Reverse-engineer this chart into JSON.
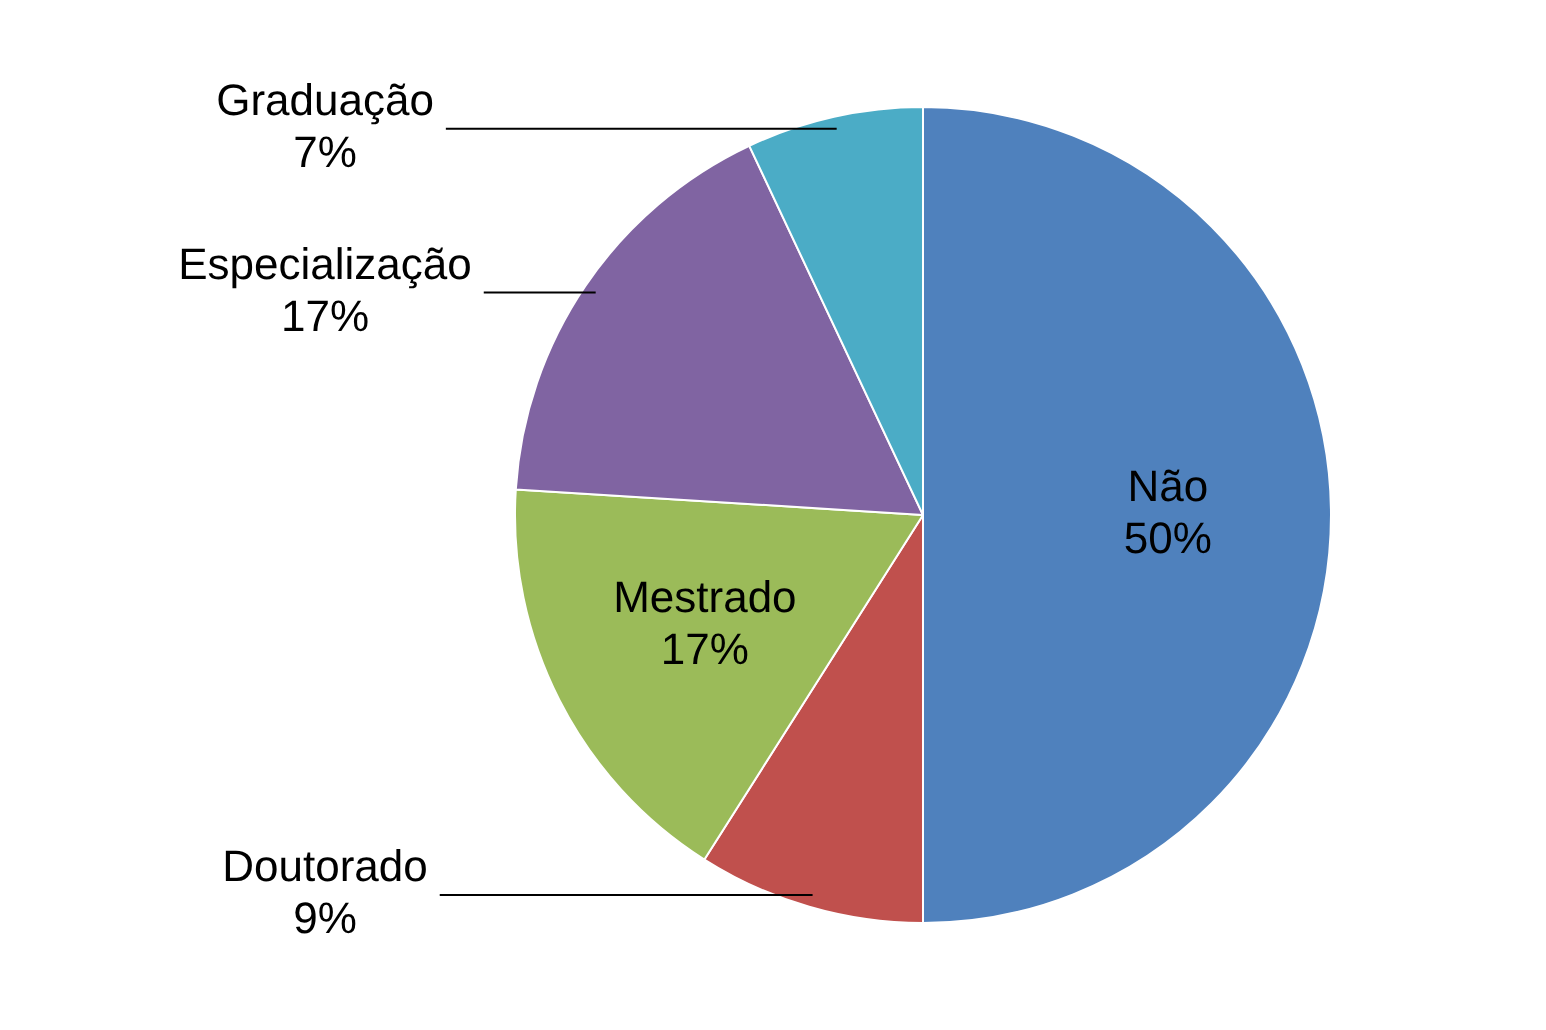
{
  "chart_data": {
    "type": "pie",
    "categories": [
      "Não",
      "Doutorado",
      "Mestrado",
      "Especialização",
      "Graduação"
    ],
    "values": [
      50,
      9,
      17,
      17,
      7
    ],
    "value_labels": [
      "50%",
      "9%",
      "17%",
      "17%",
      "7%"
    ],
    "colors": [
      "#4f81bd",
      "#c0504d",
      "#9bbb59",
      "#8064a2",
      "#4bacc6"
    ],
    "legend": false
  }
}
